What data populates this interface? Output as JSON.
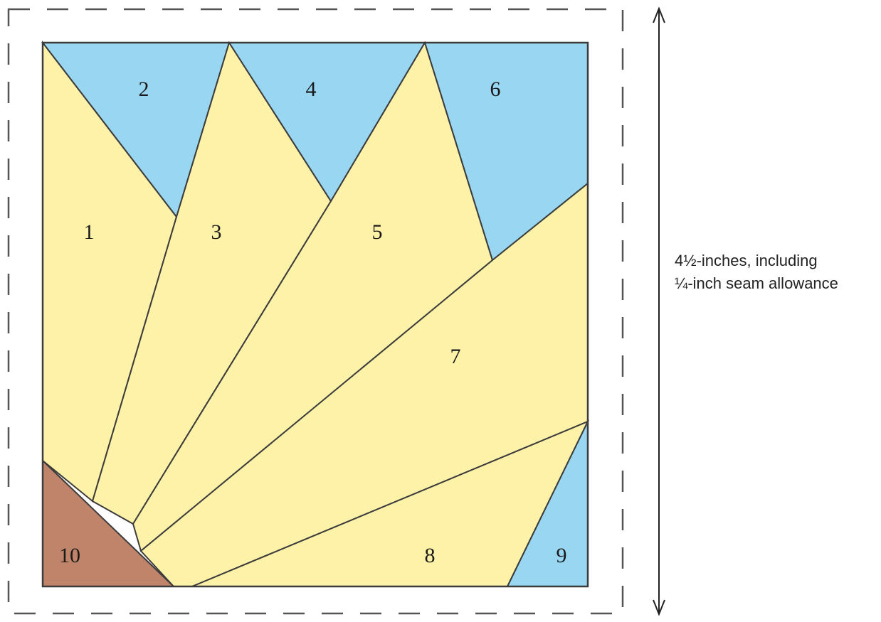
{
  "pieces": [
    {
      "label": "1",
      "color": "#fdf2a8"
    },
    {
      "label": "2",
      "color": "#98d6f2"
    },
    {
      "label": "3",
      "color": "#fdf2a8"
    },
    {
      "label": "4",
      "color": "#98d6f2"
    },
    {
      "label": "5",
      "color": "#fdf2a8"
    },
    {
      "label": "6",
      "color": "#98d6f2"
    },
    {
      "label": "7",
      "color": "#fdf2a8"
    },
    {
      "label": "8",
      "color": "#fdf2a8"
    },
    {
      "label": "9",
      "color": "#98d6f2"
    },
    {
      "label": "10",
      "color": "#bf846a"
    }
  ],
  "dimension": {
    "line1": "4½-inches, including",
    "line2": "¼-inch seam allowance"
  },
  "colors": {
    "outline": "#3c3c3c",
    "seam_line": "#555555",
    "arrow": "#222222"
  }
}
